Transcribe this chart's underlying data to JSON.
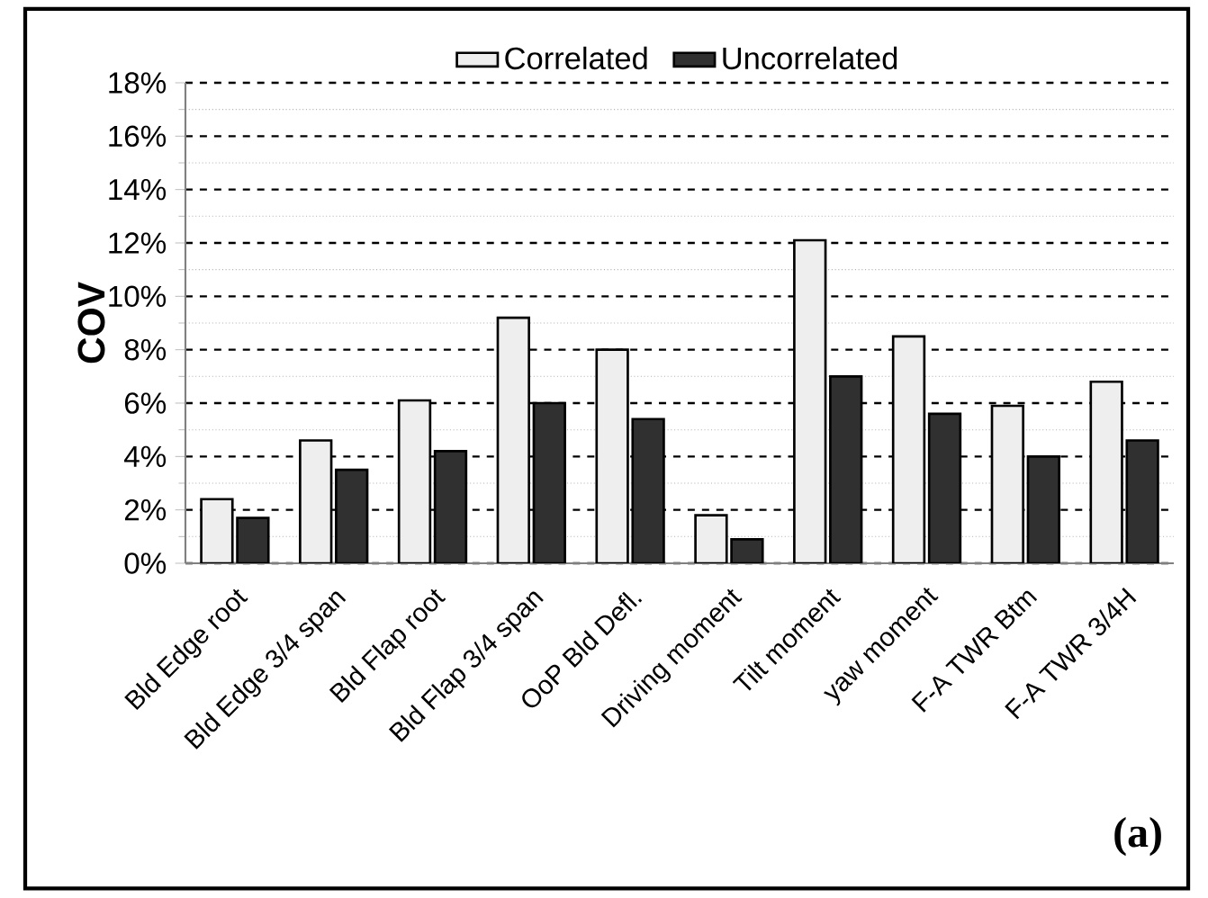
{
  "chart_data": {
    "type": "bar",
    "ylabel": "COV",
    "categories": [
      "Bld Edge root",
      "Bld Edge 3/4 span",
      "Bld Flap root",
      "Bld Flap 3/4 span",
      "OoP Bld Defl.",
      "Driving moment",
      "Tilt moment",
      "yaw moment",
      "F-A TWR Btm",
      "F-A TWR 3/4H"
    ],
    "series": [
      {
        "name": "Correlated",
        "color": "#eeeeee",
        "values": [
          2.4,
          4.6,
          6.1,
          9.2,
          8.0,
          1.8,
          12.1,
          8.5,
          5.9,
          6.8
        ]
      },
      {
        "name": "Uncorrelated",
        "color": "#303030",
        "values": [
          1.7,
          3.5,
          4.2,
          6.0,
          5.4,
          0.9,
          7.0,
          5.6,
          4.0,
          4.6
        ]
      }
    ],
    "ylim": [
      0,
      18
    ],
    "yticks": [
      {
        "value": 0,
        "label": "0%"
      },
      {
        "value": 2,
        "label": "2%"
      },
      {
        "value": 4,
        "label": "4%"
      },
      {
        "value": 6,
        "label": "6%"
      },
      {
        "value": 8,
        "label": "8%"
      },
      {
        "value": 10,
        "label": "10%"
      },
      {
        "value": 12,
        "label": "12%"
      },
      {
        "value": 14,
        "label": "14%"
      },
      {
        "value": 16,
        "label": "16%"
      },
      {
        "value": 18,
        "label": "18%"
      }
    ],
    "grid": "y",
    "legend": "top",
    "annotations": [
      "(a)"
    ]
  }
}
